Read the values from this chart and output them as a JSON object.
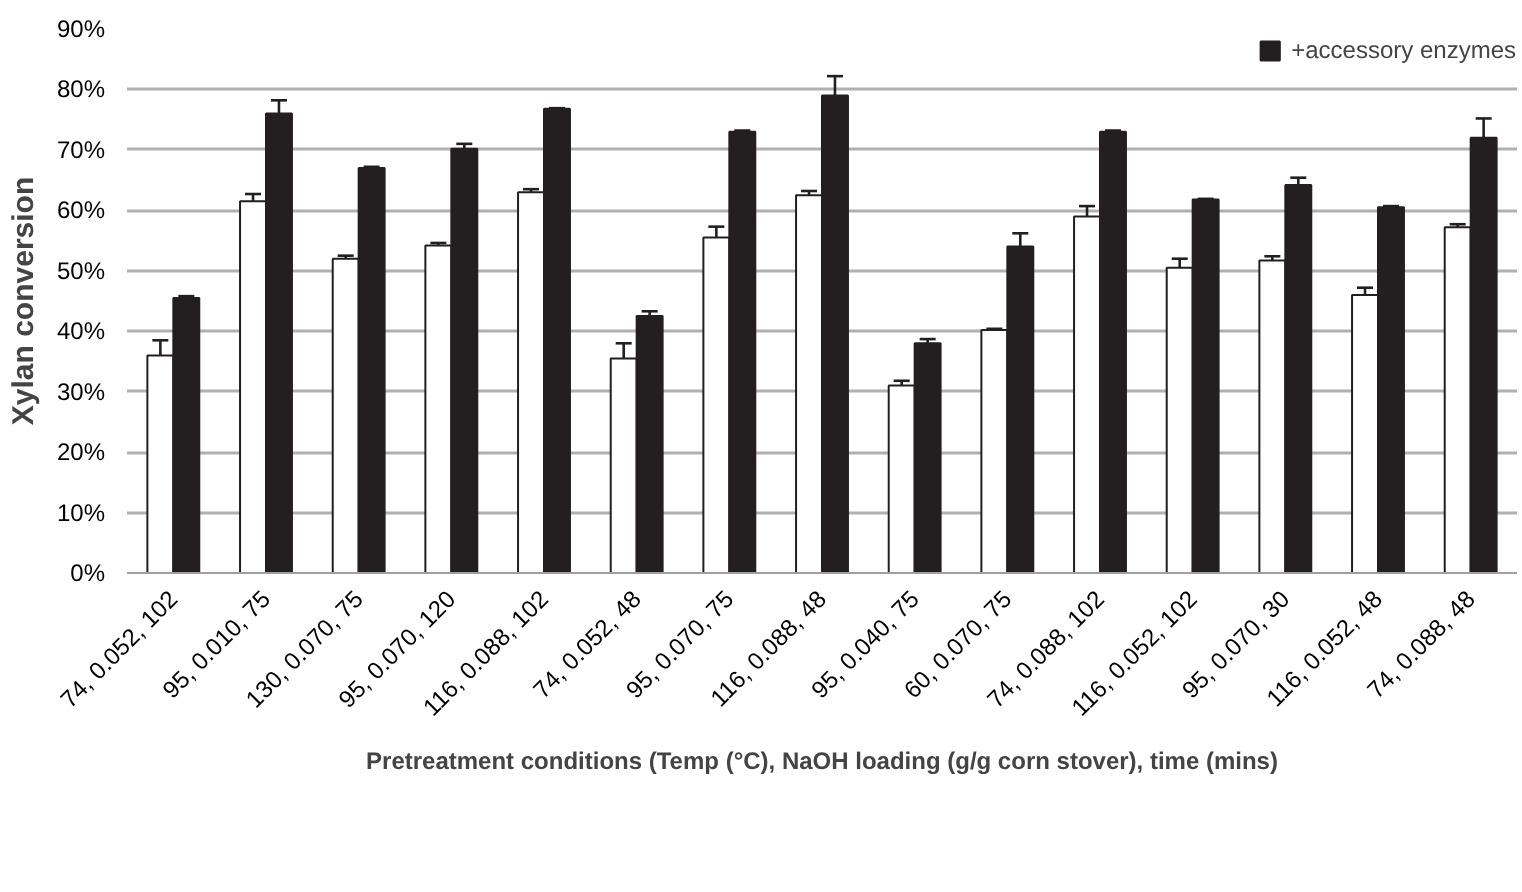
{
  "chart_data": {
    "type": "bar",
    "ylabel": "Xylan conversion",
    "xlabel": "Pretreatment conditions (Temp (°C), NaOH loading (g/g corn stover), time (mins)",
    "categories": [
      "74, 0.052, 102",
      "95, 0.010, 75",
      "130, 0.070, 75",
      "95, 0.070, 120",
      "116, 0.088, 102",
      "74, 0.052, 48",
      "95, 0.070, 75",
      "116, 0.088, 48",
      "95, 0.040, 75",
      "60, 0.070, 75",
      "74, 0.088, 102",
      "116, 0.052, 102",
      "95, 0.070, 30",
      "116, 0.052, 48",
      "74, 0.088, 48"
    ],
    "series": [
      {
        "color": "#ffffff",
        "values": [
          0.36,
          0.615,
          0.52,
          0.542,
          0.63,
          0.355,
          0.555,
          0.625,
          0.31,
          0.402,
          0.59,
          0.505,
          0.517,
          0.46,
          0.572
        ],
        "errors": [
          0.025,
          0.012,
          0.005,
          0.004,
          0.005,
          0.025,
          0.018,
          0.007,
          0.008,
          0.002,
          0.017,
          0.015,
          0.007,
          0.012,
          0.005
        ]
      },
      {
        "name": "+accessory enzymes",
        "color": "#231f20",
        "values": [
          0.455,
          0.76,
          0.67,
          0.702,
          0.768,
          0.425,
          0.73,
          0.79,
          0.38,
          0.54,
          0.73,
          0.618,
          0.642,
          0.605,
          0.72
        ],
        "errors": [
          0.003,
          0.022,
          0.002,
          0.008,
          0.001,
          0.008,
          0.002,
          0.032,
          0.007,
          0.022,
          0.002,
          0.001,
          0.012,
          0.002,
          0.032
        ]
      }
    ],
    "ylim": [
      0,
      0.9
    ],
    "yticks": [
      {
        "value": 0,
        "label": "0%"
      },
      {
        "value": 0.1,
        "label": "10%"
      },
      {
        "value": 0.2,
        "label": "20%"
      },
      {
        "value": 0.3,
        "label": "30%"
      },
      {
        "value": 0.4,
        "label": "40%"
      },
      {
        "value": 0.5,
        "label": "50%"
      },
      {
        "value": 0.6,
        "label": "60%"
      },
      {
        "value": 0.7,
        "label": "70%"
      },
      {
        "value": 0.8,
        "label": "80%"
      },
      {
        "value": 0.9,
        "label": "90%"
      }
    ],
    "grid": "y",
    "legend": "top right"
  }
}
